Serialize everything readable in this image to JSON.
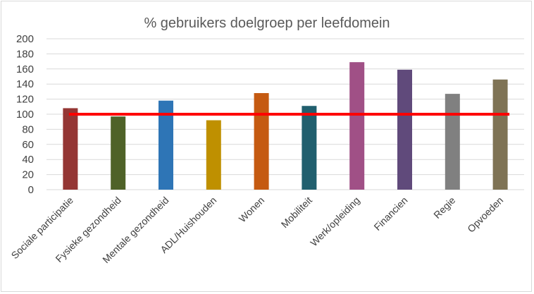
{
  "chart_data": {
    "type": "bar",
    "title": "% gebruikers doelgroep per leefdomein",
    "xlabel": "",
    "ylabel": "",
    "ylim": [
      0,
      200
    ],
    "yticks": [
      0,
      20,
      40,
      60,
      80,
      100,
      120,
      140,
      160,
      180,
      200
    ],
    "grid": true,
    "categories": [
      "Sociale participatie",
      "Fysieke gezondheid",
      "Mentale gezondheid",
      "ADL/Huishouden",
      "Wonen",
      "Mobiliteit",
      "Werk/opleiding",
      "Financien",
      "Regie",
      "Opvoeden"
    ],
    "values": [
      108,
      97,
      118,
      92,
      128,
      111,
      169,
      159,
      127,
      146
    ],
    "bar_colors": [
      "#943634",
      "#4f6228",
      "#2e75b6",
      "#bf9000",
      "#c55a11",
      "#215f6e",
      "#a05086",
      "#604a7b",
      "#808080",
      "#7f7355"
    ],
    "reference_line": {
      "value": 100,
      "color": "#ff0000"
    }
  }
}
